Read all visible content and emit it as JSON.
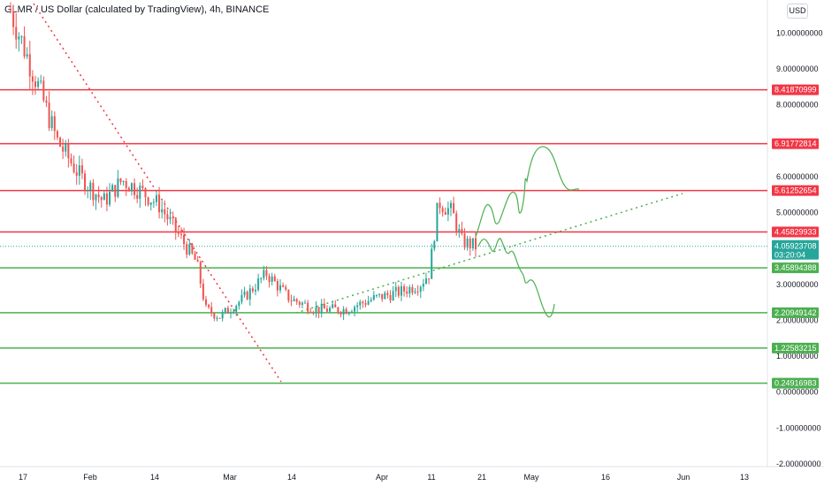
{
  "header": {
    "symbol_title": "GLMR / US Dollar (calculated by TradingView), 4h, BINANCE",
    "currency_button": "USD"
  },
  "chart_data": {
    "type": "candlestick",
    "title": "GLMR / US Dollar (calculated by TradingView), 4h, BINANCE",
    "y_ticks": [
      "10.00000000",
      "9.00000000",
      "8.00000000",
      "6.00000000",
      "5.00000000",
      "3.00000000",
      "2.00000000",
      "1.00000000",
      "0.00000000",
      "-1.00000000",
      "-2.00000000"
    ],
    "y_tick_values": [
      10,
      9,
      8,
      6,
      5,
      3,
      2,
      1,
      0,
      -1,
      -2
    ],
    "x_ticks": [
      "17",
      "Feb",
      "14",
      "Mar",
      "14",
      "Apr",
      "11",
      "21",
      "May",
      "16",
      "Jun",
      "13"
    ],
    "ylim": [
      -2.2,
      11
    ],
    "current_price": "4.05923708",
    "countdown": "03:20:04",
    "levels": [
      {
        "value": 8.41870999,
        "label": "8.41870999",
        "color": "#f23645"
      },
      {
        "value": 6.91772814,
        "label": "6.91772814",
        "color": "#f23645"
      },
      {
        "value": 5.61252654,
        "label": "5.61252654",
        "color": "#f23645"
      },
      {
        "value": 4.45829933,
        "label": "4.45829933",
        "color": "#f23645"
      },
      {
        "value": 3.45894388,
        "label": "3.45894388",
        "color": "#4caf50"
      },
      {
        "value": 2.20949142,
        "label": "2.20949142",
        "color": "#4caf50"
      },
      {
        "value": 1.22583215,
        "label": "1.22583215",
        "color": "#4caf50"
      },
      {
        "value": 0.24916983,
        "label": "0.24916983",
        "color": "#4caf50"
      }
    ],
    "colors": {
      "up": "#26a69a",
      "down": "#ef5350",
      "current": "#26a69a",
      "downtrend": "#f23645",
      "uptrend": "#4caf50",
      "projection": "#4caf50"
    },
    "price_path": [
      [
        0,
        10.6
      ],
      [
        0.06,
        8.5
      ],
      [
        0.1,
        7.0
      ],
      [
        0.15,
        6.0
      ],
      [
        0.2,
        5.3
      ],
      [
        0.24,
        5.9
      ],
      [
        0.28,
        5.6
      ],
      [
        0.32,
        5.2
      ],
      [
        0.36,
        4.4
      ],
      [
        0.4,
        3.6
      ],
      [
        0.42,
        2.3
      ],
      [
        0.45,
        2.1
      ],
      [
        0.5,
        2.6
      ],
      [
        0.55,
        3.3
      ],
      [
        0.6,
        2.6
      ],
      [
        0.66,
        2.3
      ],
      [
        0.72,
        2.3
      ],
      [
        0.78,
        2.6
      ],
      [
        0.84,
        2.8
      ],
      [
        0.88,
        3.0
      ],
      [
        0.9,
        3.3
      ],
      [
        0.92,
        5.3
      ],
      [
        0.95,
        5.0
      ],
      [
        0.97,
        4.2
      ],
      [
        1.0,
        4.06
      ]
    ]
  }
}
